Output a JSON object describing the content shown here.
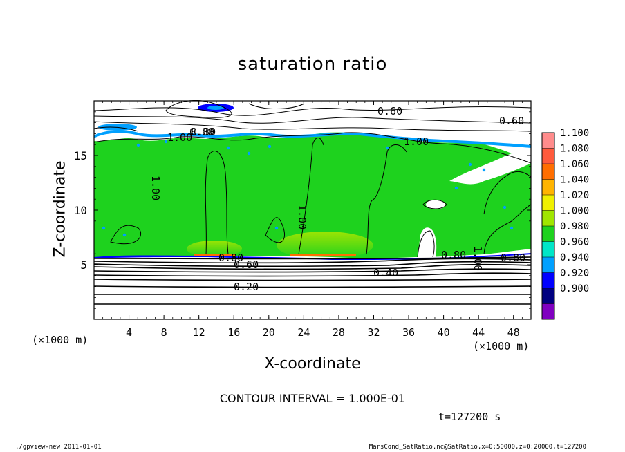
{
  "chart_data": {
    "type": "heatmap",
    "title": "saturation ratio",
    "xlabel": "X-coordinate",
    "ylabel": "Z-coordinate",
    "x_unit_label": "(×1000 m)",
    "xlim": [
      0,
      50
    ],
    "ylim": [
      0,
      20
    ],
    "x_ticks": [
      "4",
      "8",
      "12",
      "16",
      "20",
      "24",
      "28",
      "32",
      "36",
      "40",
      "44",
      "48"
    ],
    "y_ticks": [
      "5",
      "10",
      "15"
    ],
    "colorbar": {
      "levels": [
        "1.100",
        "1.080",
        "1.060",
        "1.040",
        "1.020",
        "1.000",
        "0.980",
        "0.960",
        "0.940",
        "0.920",
        "0.900"
      ],
      "colors": [
        "#ff8c8c",
        "#ff5a3c",
        "#ff6e00",
        "#ffb400",
        "#f0f000",
        "#a0e600",
        "#1ed21e",
        "#00e6c8",
        "#00a0ff",
        "#0000ff",
        "#000080",
        "#8000c0"
      ]
    },
    "contour_labels": [
      "0.60",
      "0.80",
      "1.00",
      "1.00",
      "1.00",
      "1.00",
      "0.80",
      "0.60",
      "0.40",
      "0.80",
      "0.20",
      "0.80",
      "0.60",
      "1.00",
      "0.80"
    ],
    "contour_interval": "CONTOUR INTERVAL = 1.000E-01",
    "time": "t=127200 s"
  },
  "footer": {
    "left": "./gpview-new 2011-01-01",
    "right": "MarsCond_SatRatio.nc@SatRatio,x=0:50000,z=0:20000,t=127200"
  }
}
